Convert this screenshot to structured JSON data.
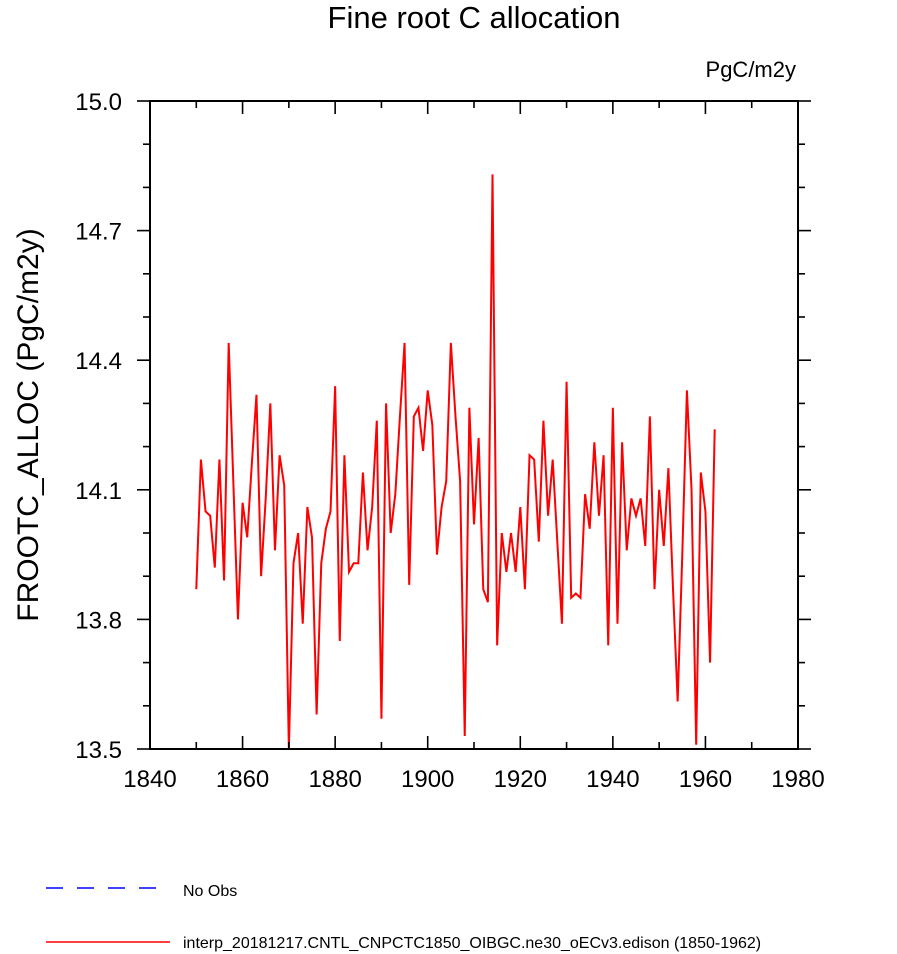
{
  "chart_data": {
    "type": "line",
    "title": "Fine root C allocation",
    "units": "PgC/m2y",
    "xlabel": "",
    "ylabel": "FROOTC_ALLOC  (PgC/m2y)",
    "xlim": [
      1840,
      1980
    ],
    "ylim": [
      13.5,
      15.0
    ],
    "xticks": [
      1840,
      1860,
      1880,
      1900,
      1920,
      1940,
      1960,
      1980
    ],
    "xtick_labels": [
      "1840",
      "1860",
      "1880",
      "1900",
      "1920",
      "1940",
      "1960",
      "1980"
    ],
    "yticks": [
      13.5,
      13.8,
      14.1,
      14.4,
      14.7,
      15.0
    ],
    "ytick_labels": [
      "13.5",
      "13.8",
      "14.1",
      "14.4",
      "14.7",
      "15.0"
    ],
    "y_minor_step": 0.1,
    "x_minor_step": 10,
    "grid": false,
    "legend_position": "bottom-left, below plot",
    "series": [
      {
        "name": "interp_20181217.CNTL_CNPCTC1850_OIBGC.ne30_oECv3.edison (1850-1962)",
        "color": "#ff0000",
        "dash": "solid",
        "x_start": 1850,
        "x_step": 1,
        "values": [
          13.87,
          14.17,
          14.05,
          14.04,
          13.92,
          14.17,
          13.89,
          14.44,
          14.12,
          13.8,
          14.07,
          13.99,
          14.16,
          14.32,
          13.9,
          14.08,
          14.3,
          13.96,
          14.18,
          14.11,
          13.5,
          13.93,
          14.0,
          13.79,
          14.06,
          13.99,
          13.58,
          13.93,
          14.01,
          14.05,
          14.34,
          13.75,
          14.18,
          13.91,
          13.93,
          13.93,
          14.14,
          13.96,
          14.06,
          14.26,
          13.57,
          14.3,
          14.0,
          14.09,
          14.27,
          14.44,
          13.88,
          14.27,
          14.29,
          14.19,
          14.33,
          14.25,
          13.95,
          14.06,
          14.12,
          14.44,
          14.27,
          14.12,
          13.53,
          14.29,
          14.02,
          14.22,
          13.87,
          13.84,
          14.83,
          13.74,
          14.0,
          13.91,
          14.0,
          13.91,
          14.06,
          13.87,
          14.18,
          14.17,
          13.98,
          14.26,
          14.04,
          14.17,
          13.98,
          13.79,
          14.35,
          13.85,
          13.86,
          13.85,
          14.09,
          14.01,
          14.21,
          14.04,
          14.18,
          13.74,
          14.29,
          13.79,
          14.21,
          13.96,
          14.08,
          14.04,
          14.08,
          13.97,
          14.27,
          13.87,
          14.1,
          13.97,
          14.15,
          13.87,
          13.61,
          13.95,
          14.33,
          14.1,
          13.51,
          14.14,
          14.05,
          13.7,
          14.24
        ]
      }
    ],
    "legend": [
      {
        "label": "No Obs",
        "color": "#0000ff",
        "dash": "dashed"
      },
      {
        "label": "interp_20181217.CNTL_CNPCTC1850_OIBGC.ne30_oECv3.edison (1850-1962)",
        "color": "#ff0000",
        "dash": "solid"
      }
    ]
  }
}
